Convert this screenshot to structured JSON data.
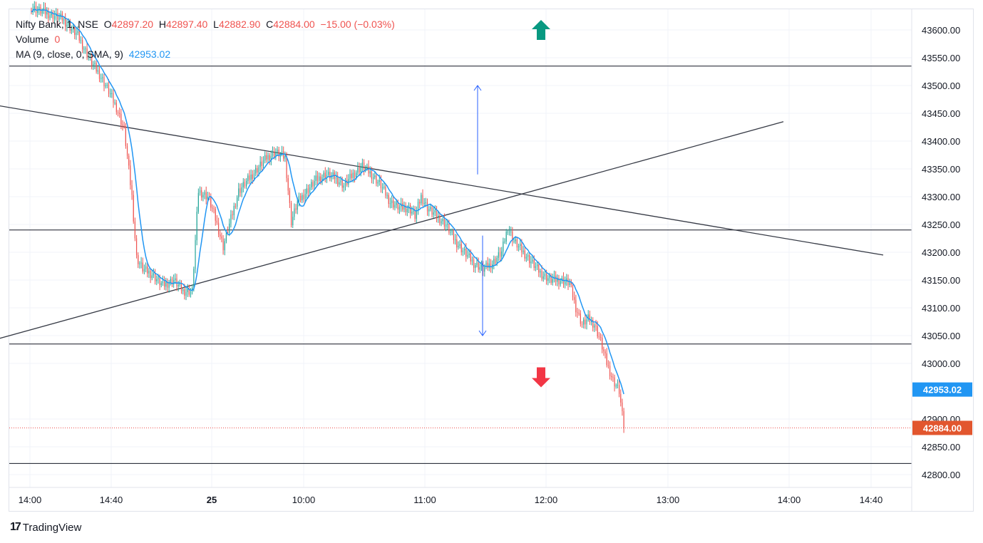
{
  "legend": {
    "symbol": "Nifty Bank",
    "separator": ",",
    "interval": "1",
    "exchange": "NSE",
    "open_label": "O",
    "open": "42897.20",
    "high_label": "H",
    "high": "42897.40",
    "low_label": "L",
    "low": "42882.90",
    "close_label": "C",
    "close": "42884.00",
    "change": "−15.00 (−0.03%)",
    "volume_label": "Volume",
    "volume": "0",
    "ma_label": "MA (9, close, 0, SMA, 9)",
    "ma_value": "42953.02"
  },
  "brand": {
    "logo": "17",
    "name": "TradingView"
  },
  "colors": {
    "up": "#26a69a",
    "down": "#ef5350",
    "ma": "#2196f3",
    "trend": "#363a45",
    "arrow_up": "#089981",
    "arrow_down": "#f23645",
    "measure": "#2962ff"
  },
  "chart_data": {
    "type": "candlestick",
    "y_ticks": [
      "43600.00",
      "43550.00",
      "43500.00",
      "43450.00",
      "43400.00",
      "43350.00",
      "43300.00",
      "43250.00",
      "43200.00",
      "43150.00",
      "43100.00",
      "43050.00",
      "43000.00",
      "42900.00",
      "42850.00",
      "42800.00"
    ],
    "y_tick_values": [
      43600,
      43550,
      43500,
      43450,
      43400,
      43350,
      43300,
      43250,
      43200,
      43150,
      43100,
      43050,
      43000,
      42900,
      42850,
      42800
    ],
    "ylim": [
      42780,
      43640
    ],
    "x_ticks": [
      {
        "label": "14:00",
        "bold": false
      },
      {
        "label": "14:40",
        "bold": false
      },
      {
        "label": "25",
        "bold": true
      },
      {
        "label": "10:00",
        "bold": false
      },
      {
        "label": "11:00",
        "bold": false
      },
      {
        "label": "12:00",
        "bold": false
      },
      {
        "label": "13:00",
        "bold": false
      },
      {
        "label": "14:00",
        "bold": false
      },
      {
        "label": "14:40",
        "bold": false
      }
    ],
    "last_price": "42884.00",
    "ma_last": "42953.02",
    "closes_anchor": [
      [
        0,
        43640
      ],
      [
        20,
        43620
      ],
      [
        30,
        43590
      ],
      [
        38,
        43545
      ],
      [
        44,
        43520
      ],
      [
        50,
        43490
      ],
      [
        55,
        43460
      ],
      [
        60,
        43420
      ],
      [
        65,
        43300
      ],
      [
        68,
        43190
      ],
      [
        72,
        43170
      ],
      [
        78,
        43160
      ],
      [
        85,
        43140
      ],
      [
        92,
        43150
      ],
      [
        98,
        43130
      ],
      [
        104,
        43130
      ],
      [
        108,
        43310
      ],
      [
        114,
        43300
      ],
      [
        118,
        43270
      ],
      [
        124,
        43210
      ],
      [
        128,
        43250
      ],
      [
        134,
        43310
      ],
      [
        140,
        43330
      ],
      [
        146,
        43350
      ],
      [
        152,
        43370
      ],
      [
        158,
        43380
      ],
      [
        164,
        43370
      ],
      [
        168,
        43255
      ],
      [
        172,
        43290
      ],
      [
        178,
        43310
      ],
      [
        184,
        43330
      ],
      [
        190,
        43340
      ],
      [
        196,
        43335
      ],
      [
        202,
        43320
      ],
      [
        208,
        43340
      ],
      [
        214,
        43355
      ],
      [
        220,
        43340
      ],
      [
        226,
        43320
      ],
      [
        232,
        43290
      ],
      [
        238,
        43280
      ],
      [
        244,
        43280
      ],
      [
        248,
        43265
      ],
      [
        252,
        43300
      ],
      [
        256,
        43280
      ],
      [
        262,
        43265
      ],
      [
        268,
        43250
      ],
      [
        274,
        43220
      ],
      [
        280,
        43200
      ],
      [
        286,
        43180
      ],
      [
        292,
        43170
      ],
      [
        298,
        43180
      ],
      [
        304,
        43200
      ],
      [
        308,
        43245
      ],
      [
        312,
        43220
      ],
      [
        318,
        43200
      ],
      [
        324,
        43180
      ],
      [
        330,
        43160
      ],
      [
        336,
        43150
      ],
      [
        342,
        43150
      ],
      [
        348,
        43145
      ],
      [
        352,
        43100
      ],
      [
        356,
        43070
      ],
      [
        360,
        43080
      ],
      [
        364,
        43070
      ],
      [
        368,
        43040
      ],
      [
        372,
        43000
      ],
      [
        376,
        42970
      ],
      [
        380,
        42950
      ],
      [
        383,
        42884
      ]
    ],
    "horizontal_levels": [
      43535,
      43240,
      43035,
      42820
    ],
    "trendlines": [
      {
        "from": [
          -150,
          43483
        ],
        "to": [
          1750,
          43195
        ]
      },
      {
        "from": [
          -150,
          43013
        ],
        "to": [
          1550,
          43435
        ]
      }
    ],
    "measure": {
      "x": 1480,
      "up_from": 43340,
      "up_to": 43500,
      "down_from": 43230,
      "down_to": 43050
    },
    "signal_arrows": [
      {
        "dir": "up",
        "x": 1580,
        "y": 43600
      },
      {
        "dir": "down",
        "x": 1580,
        "y": 42975
      }
    ]
  }
}
